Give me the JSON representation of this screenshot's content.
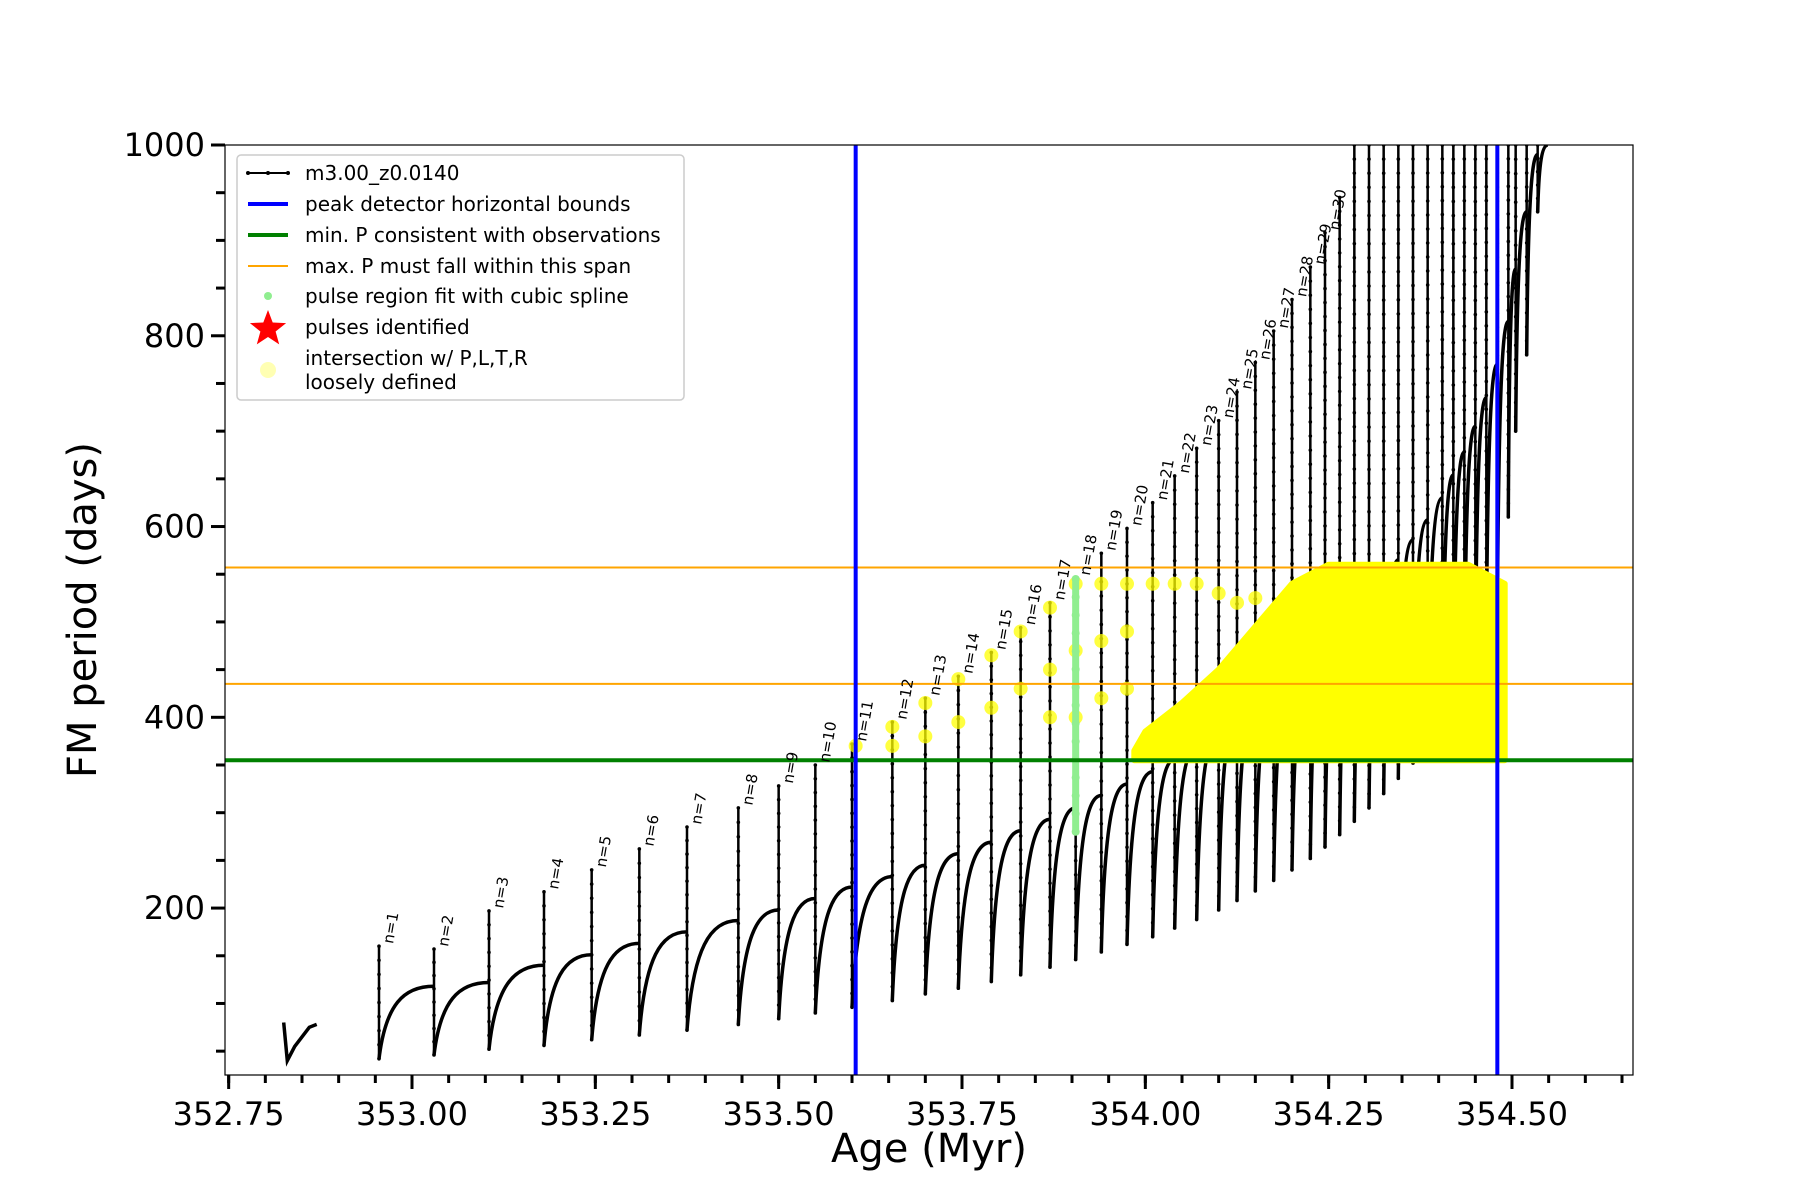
{
  "chart_data": {
    "type": "line",
    "xlabel": "Age (Myr)",
    "ylabel": "FM period (days)",
    "xlim": [
      352.745,
      354.665
    ],
    "ylim": [
      25,
      1000
    ],
    "x_ticks": [
      "352.75",
      "353.00",
      "353.25",
      "353.50",
      "353.75",
      "354.00",
      "354.25",
      "354.50"
    ],
    "x_tick_values": [
      352.75,
      353.0,
      353.25,
      353.5,
      353.75,
      354.0,
      354.25,
      354.5
    ],
    "y_ticks": [
      "200",
      "400",
      "600",
      "800",
      "1000"
    ],
    "y_tick_values": [
      200,
      400,
      600,
      800,
      1000
    ],
    "series": [
      {
        "name": "m3.00_z0.0140",
        "color": "#000000",
        "pulses": [
          {
            "label": "n=1",
            "x": 352.955,
            "peak": 160,
            "start": 42,
            "end": 118
          },
          {
            "label": "n=2",
            "x": 353.03,
            "peak": 157,
            "start": 46,
            "end": 122
          },
          {
            "label": "n=3",
            "x": 353.105,
            "peak": 197,
            "start": 52,
            "end": 140
          },
          {
            "label": "n=4",
            "x": 353.18,
            "peak": 217,
            "start": 56,
            "end": 151
          },
          {
            "label": "n=5",
            "x": 353.245,
            "peak": 240,
            "start": 62,
            "end": 163
          },
          {
            "label": "n=6",
            "x": 353.31,
            "peak": 262,
            "start": 67,
            "end": 175
          },
          {
            "label": "n=7",
            "x": 353.375,
            "peak": 285,
            "start": 72,
            "end": 187
          },
          {
            "label": "n=8",
            "x": 353.445,
            "peak": 305,
            "start": 78,
            "end": 198
          },
          {
            "label": "n=9",
            "x": 353.5,
            "peak": 328,
            "start": 84,
            "end": 210
          },
          {
            "label": "n=10",
            "x": 353.55,
            "peak": 350,
            "start": 90,
            "end": 222
          },
          {
            "label": "n=11",
            "x": 353.6,
            "peak": 372,
            "start": 96,
            "end": 233
          },
          {
            "label": "n=12",
            "x": 353.655,
            "peak": 395,
            "start": 103,
            "end": 245
          },
          {
            "label": "n=13",
            "x": 353.7,
            "peak": 420,
            "start": 110,
            "end": 257
          },
          {
            "label": "n=14",
            "x": 353.745,
            "peak": 443,
            "start": 116,
            "end": 269
          },
          {
            "label": "n=15",
            "x": 353.79,
            "peak": 468,
            "start": 123,
            "end": 281
          },
          {
            "label": "n=16",
            "x": 353.83,
            "peak": 494,
            "start": 130,
            "end": 293
          },
          {
            "label": "n=17",
            "x": 353.87,
            "peak": 520,
            "start": 138,
            "end": 305
          },
          {
            "label": "n=18",
            "x": 353.905,
            "peak": 546,
            "start": 146,
            "end": 318
          },
          {
            "label": "n=19",
            "x": 353.94,
            "peak": 572,
            "start": 154,
            "end": 330
          },
          {
            "label": "n=20",
            "x": 353.975,
            "peak": 598,
            "start": 162,
            "end": 343
          },
          {
            "label": "n=21",
            "x": 354.01,
            "peak": 625,
            "start": 170,
            "end": 356
          },
          {
            "label": "n=22",
            "x": 354.04,
            "peak": 653,
            "start": 179,
            "end": 369
          },
          {
            "label": "n=23",
            "x": 354.07,
            "peak": 682,
            "start": 188,
            "end": 383
          },
          {
            "label": "n=24",
            "x": 354.1,
            "peak": 711,
            "start": 198,
            "end": 397
          },
          {
            "label": "n=25",
            "x": 354.125,
            "peak": 741,
            "start": 208,
            "end": 411
          },
          {
            "label": "n=26",
            "x": 354.15,
            "peak": 772,
            "start": 218,
            "end": 426
          },
          {
            "label": "n=27",
            "x": 354.175,
            "peak": 805,
            "start": 229,
            "end": 441
          },
          {
            "label": "n=28",
            "x": 354.2,
            "peak": 838,
            "start": 240,
            "end": 457
          },
          {
            "label": "n=29",
            "x": 354.225,
            "peak": 872,
            "start": 252,
            "end": 473
          },
          {
            "label": "n=30",
            "x": 354.245,
            "peak": 908,
            "start": 264,
            "end": 490
          },
          {
            "label": "",
            "x": 354.265,
            "peak": 945,
            "start": 277,
            "end": 508
          },
          {
            "label": "",
            "x": 354.285,
            "peak": 1000,
            "start": 291,
            "end": 526
          },
          {
            "label": "",
            "x": 354.305,
            "peak": 1000,
            "start": 305,
            "end": 545
          },
          {
            "label": "",
            "x": 354.325,
            "peak": 1000,
            "start": 320,
            "end": 565
          },
          {
            "label": "",
            "x": 354.345,
            "peak": 1000,
            "start": 336,
            "end": 586
          },
          {
            "label": "",
            "x": 354.365,
            "peak": 1000,
            "start": 352,
            "end": 607
          },
          {
            "label": "",
            "x": 354.385,
            "peak": 1000,
            "start": 369,
            "end": 630
          },
          {
            "label": "",
            "x": 354.405,
            "peak": 1000,
            "start": 388,
            "end": 654
          },
          {
            "label": "",
            "x": 354.42,
            "peak": 1000,
            "start": 408,
            "end": 678
          },
          {
            "label": "",
            "x": 354.435,
            "peak": 1000,
            "start": 430,
            "end": 705
          },
          {
            "label": "",
            "x": 354.45,
            "peak": 1000,
            "start": 452,
            "end": 735
          },
          {
            "label": "",
            "x": 354.465,
            "peak": 1000,
            "start": 475,
            "end": 770
          },
          {
            "label": "",
            "x": 354.48,
            "peak": 1000,
            "start": 500,
            "end": 815
          },
          {
            "label": "",
            "x": 354.495,
            "peak": 1000,
            "start": 610,
            "end": 870
          },
          {
            "label": "",
            "x": 354.505,
            "peak": 1000,
            "start": 700,
            "end": 930
          },
          {
            "label": "",
            "x": 354.52,
            "peak": 1000,
            "start": 780,
            "end": 990
          },
          {
            "label": "",
            "x": 354.535,
            "peak": 1000,
            "start": 930,
            "end": 1000
          }
        ],
        "initial_segment": {
          "x": [
            352.825,
            352.83,
            352.84,
            352.86,
            352.87
          ],
          "y": [
            80,
            40,
            55,
            75,
            78
          ]
        }
      }
    ],
    "reference_lines": {
      "peak_detector_bounds_x": [
        353.605,
        354.48
      ],
      "min_period_y": 355,
      "max_period_span_y": [
        435,
        557
      ]
    },
    "green_spline_region": {
      "x": 353.905,
      "y_range": [
        280,
        545
      ]
    },
    "yellow_points": [
      {
        "x": 353.605,
        "y": 370
      },
      {
        "x": 353.655,
        "y": 390
      },
      {
        "x": 353.655,
        "y": 370
      },
      {
        "x": 353.7,
        "y": 415
      },
      {
        "x": 353.7,
        "y": 380
      },
      {
        "x": 353.745,
        "y": 440
      },
      {
        "x": 353.745,
        "y": 395
      },
      {
        "x": 353.79,
        "y": 465
      },
      {
        "x": 353.79,
        "y": 410
      },
      {
        "x": 353.83,
        "y": 490
      },
      {
        "x": 353.83,
        "y": 430
      },
      {
        "x": 353.87,
        "y": 515
      },
      {
        "x": 353.87,
        "y": 450
      },
      {
        "x": 353.87,
        "y": 400
      },
      {
        "x": 353.905,
        "y": 540
      },
      {
        "x": 353.905,
        "y": 470
      },
      {
        "x": 353.905,
        "y": 400
      },
      {
        "x": 353.94,
        "y": 540
      },
      {
        "x": 353.94,
        "y": 480
      },
      {
        "x": 353.94,
        "y": 420
      },
      {
        "x": 353.975,
        "y": 540
      },
      {
        "x": 353.975,
        "y": 490
      },
      {
        "x": 353.975,
        "y": 430
      },
      {
        "x": 354.01,
        "y": 540
      },
      {
        "x": 354.04,
        "y": 540
      },
      {
        "x": 354.07,
        "y": 540
      },
      {
        "x": 354.1,
        "y": 530
      },
      {
        "x": 354.125,
        "y": 520
      },
      {
        "x": 354.15,
        "y": 525
      }
    ],
    "yellow_band": {
      "x": [
        353.985,
        354.0,
        354.05,
        354.1,
        354.15,
        354.2,
        354.25,
        354.28,
        354.3,
        354.35,
        354.4,
        354.44,
        354.47,
        354.49,
        354.49,
        354.44,
        354.4,
        354.35,
        354.3,
        354.25,
        354.2,
        354.15,
        354.1,
        354.05,
        354.0,
        353.985
      ],
      "y": [
        355,
        355,
        355,
        355,
        355,
        355,
        355,
        355,
        355,
        355,
        355,
        355,
        355,
        355,
        540,
        560,
        560,
        560,
        560,
        560,
        540,
        495,
        450,
        415,
        385,
        365
      ]
    },
    "legend": {
      "position": "top-left",
      "entries": [
        {
          "label": "m3.00_z0.0140",
          "kind": "line-dots",
          "color": "#000000"
        },
        {
          "label": "peak detector horizontal bounds",
          "kind": "thick-line",
          "color": "#0000ff"
        },
        {
          "label": "min. P consistent with observations",
          "kind": "thick-line",
          "color": "#008000"
        },
        {
          "label": "max. P must fall within this span",
          "kind": "thin-line",
          "color": "#ffa500"
        },
        {
          "label": "pulse region fit with cubic spline",
          "kind": "dot",
          "color": "#90ee90"
        },
        {
          "label": "pulses identified",
          "kind": "star",
          "color": "#ff0000"
        },
        {
          "label": "intersection w/ P,L,T,R",
          "label2": "loosely defined",
          "kind": "big-dot",
          "color": "#ffffb3"
        }
      ]
    },
    "colors": {
      "blue": "#0000ff",
      "green": "#008000",
      "orange": "#ffa500",
      "yellow": "#ffff00",
      "light_green": "#90ee90"
    },
    "grid": false
  }
}
